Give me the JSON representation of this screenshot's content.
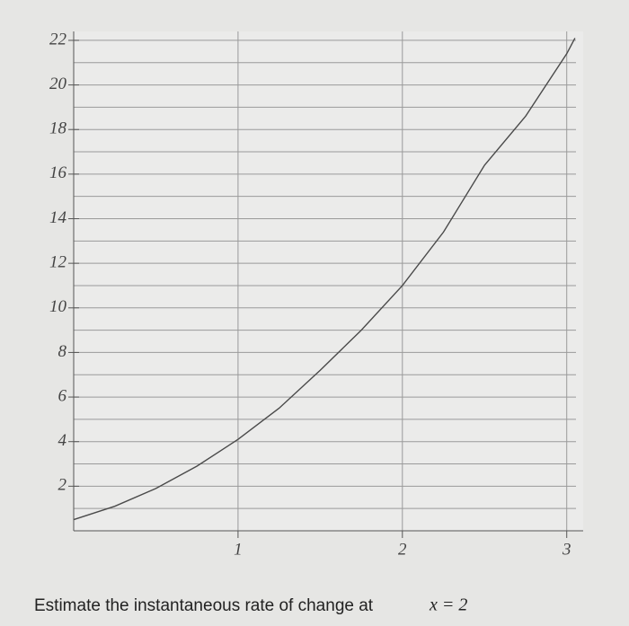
{
  "chart_data": {
    "type": "line",
    "x": [
      0,
      0.25,
      0.5,
      0.75,
      1,
      1.25,
      1.5,
      1.75,
      2,
      2.25,
      2.5,
      2.75,
      3,
      3.05
    ],
    "series": [
      {
        "color": "#4a4a4a",
        "values": [
          0.5,
          1.1,
          1.9,
          2.9,
          4.1,
          5.5,
          7.2,
          9.0,
          11,
          13.4,
          16.4,
          18.6,
          21.4,
          22.1
        ]
      }
    ],
    "xlim": [
      0,
      3.1
    ],
    "ylim": [
      0,
      22.4
    ],
    "xticks": [
      1,
      2,
      3
    ],
    "yticks": [
      2,
      4,
      6,
      8,
      10,
      12,
      14,
      16,
      18,
      20,
      22
    ],
    "ygrid": [
      1,
      2,
      3,
      4,
      5,
      6,
      7,
      8,
      9,
      10,
      11,
      12,
      13,
      14,
      15,
      16,
      17,
      18,
      19,
      20,
      21,
      22
    ],
    "grid": true,
    "question_text": "Estimate the instantaneous rate of change at",
    "question_math": "x = 2"
  }
}
